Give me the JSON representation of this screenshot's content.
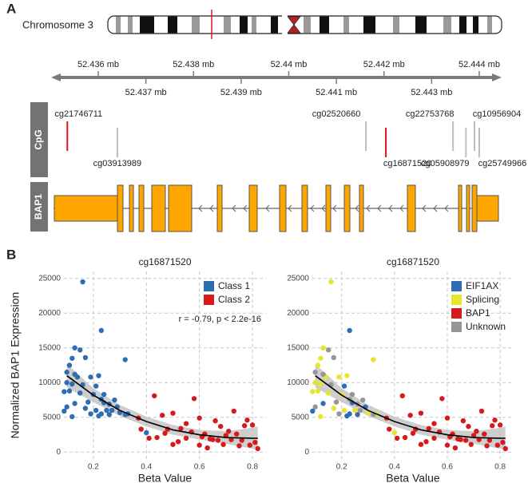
{
  "panel_labels": [
    "A",
    "B"
  ],
  "panel_a": {
    "chromosome_label": "Chromosome 3",
    "axis": {
      "xlim": [
        52.43506,
        52.44442
      ],
      "ticks": [
        {
          "value": 52.436,
          "label": "52.436 mb"
        },
        {
          "value": 52.437,
          "label": "52.437 mb"
        },
        {
          "value": 52.438,
          "label": "52.438 mb"
        },
        {
          "value": 52.439,
          "label": "52.439 mb"
        },
        {
          "value": 52.44,
          "label": "52.44 mb"
        },
        {
          "value": 52.441,
          "label": "52.441 mb"
        },
        {
          "value": 52.442,
          "label": "52.442 mb"
        },
        {
          "value": 52.443,
          "label": "52.443 mb"
        },
        {
          "value": 52.444,
          "label": "52.444 mb"
        }
      ]
    },
    "tracks": [
      "CpG",
      "BAP1"
    ],
    "probes": [
      {
        "name": "cg21746711",
        "position": 52.43535,
        "color": "#d7191c",
        "label_position": "above"
      },
      {
        "name": "cg03913989",
        "position": 52.4364,
        "color": "#bdbdbd",
        "label_position": "below"
      },
      {
        "name": "cg02520660",
        "position": 52.44162,
        "color": "#bdbdbd",
        "label_position": "above"
      },
      {
        "name": "cg16871520",
        "position": 52.44204,
        "color": "#d7191c",
        "label_position": "below"
      },
      {
        "name": "cg22753768",
        "position": 52.44345,
        "color": "#bdbdbd",
        "label_position": "above"
      },
      {
        "name": "cg05908979",
        "position": 52.44372,
        "color": "#bdbdbd",
        "label_position": "below"
      },
      {
        "name": "cg10956904",
        "position": 52.4439,
        "color": "#bdbdbd",
        "label_position": "above"
      },
      {
        "name": "cg25749966",
        "position": 52.444,
        "color": "#bdbdbd",
        "label_position": "below"
      }
    ]
  },
  "chart_data": [
    {
      "type": "scatter",
      "title": "cg16871520",
      "xlabel": "Beta Value",
      "ylabel": "Normalized BAP1 Expression",
      "annotation": "r = -0.79, p < 2.2e-16",
      "legend": "top-right",
      "grid": true,
      "xlim": [
        0.089,
        0.851
      ],
      "ylim": [
        -1000,
        26000
      ],
      "xticks": [
        0.2,
        0.4,
        0.6,
        0.8
      ],
      "yticks": [
        0,
        5000,
        10000,
        15000,
        20000,
        25000
      ],
      "series": [
        {
          "name": "Class 1",
          "color": "#2f6db3",
          "x": [
            0.16,
            0.23,
            0.13,
            0.15,
            0.12,
            0.17,
            0.32,
            0.11,
            0.1,
            0.13,
            0.14,
            0.19,
            0.22,
            0.1,
            0.12,
            0.16,
            0.21,
            0.11,
            0.09,
            0.15,
            0.2,
            0.24,
            0.28,
            0.18,
            0.13,
            0.24,
            0.26,
            0.1,
            0.17,
            0.21,
            0.25,
            0.27,
            0.09,
            0.19,
            0.22,
            0.23,
            0.26,
            0.12,
            0.3,
            0.32,
            0.4,
            0.23,
            0.29,
            0.33
          ],
          "values": [
            24500,
            17500,
            15000,
            14700,
            13500,
            13600,
            13300,
            12500,
            11500,
            11200,
            10800,
            10800,
            11000,
            10000,
            9800,
            9700,
            9500,
            8800,
            8700,
            8500,
            8300,
            8300,
            7500,
            7200,
            7000,
            7100,
            6900,
            6500,
            6300,
            6000,
            6000,
            6000,
            5900,
            5500,
            5200,
            5500,
            5400,
            5100,
            5700,
            5400,
            2800,
            7600,
            6500,
            5500
          ]
        },
        {
          "name": "Class 2",
          "color": "#d7191c",
          "x": [
            0.37,
            0.38,
            0.43,
            0.46,
            0.47,
            0.5,
            0.52,
            0.53,
            0.55,
            0.57,
            0.58,
            0.6,
            0.6,
            0.61,
            0.62,
            0.63,
            0.64,
            0.65,
            0.66,
            0.67,
            0.68,
            0.69,
            0.7,
            0.71,
            0.72,
            0.73,
            0.74,
            0.75,
            0.76,
            0.77,
            0.78,
            0.79,
            0.8,
            0.81,
            0.82,
            0.55,
            0.48,
            0.44,
            0.41,
            0.5
          ],
          "values": [
            4900,
            3300,
            8100,
            5300,
            2700,
            5600,
            1500,
            3400,
            4100,
            2900,
            7700,
            4900,
            1000,
            2200,
            2600,
            600,
            1900,
            1800,
            4500,
            1700,
            3700,
            1100,
            2400,
            3000,
            1800,
            5900,
            2600,
            900,
            1700,
            3800,
            4600,
            1000,
            3900,
            1400,
            500,
            2000,
            3300,
            2100,
            2000,
            1100
          ]
        }
      ],
      "fit": {
        "x": [
          0.1,
          0.2,
          0.3,
          0.4,
          0.5,
          0.6,
          0.7,
          0.8,
          0.82
        ],
        "y": [
          11000,
          8200,
          6000,
          4400,
          3200,
          2500,
          2100,
          2000,
          2000
        ],
        "lower": [
          9300,
          7200,
          5200,
          3700,
          2500,
          1800,
          1200,
          500,
          300
        ],
        "upper": [
          12700,
          9200,
          6800,
          5100,
          3900,
          3200,
          3000,
          3500,
          3700
        ]
      }
    },
    {
      "type": "scatter",
      "title": "cg16871520",
      "xlabel": "Beta Value",
      "legend": "top-right",
      "grid": true,
      "xlim": [
        0.089,
        0.851
      ],
      "ylim": [
        -1000,
        26000
      ],
      "xticks": [
        0.2,
        0.4,
        0.6,
        0.8
      ],
      "yticks": [
        0,
        5000,
        10000,
        15000,
        20000,
        25000
      ],
      "series": [
        {
          "name": "EIF1AX",
          "color": "#2f6db3",
          "x": [
            0.23,
            0.09,
            0.13,
            0.21,
            0.22,
            0.26,
            0.29,
            0.24,
            0.23
          ],
          "values": [
            17500,
            5900,
            7000,
            9500,
            5200,
            5400,
            6500,
            7100,
            5500
          ]
        },
        {
          "name": "Splicing",
          "color": "#e6e62a",
          "x": [
            0.16,
            0.13,
            0.12,
            0.32,
            0.11,
            0.1,
            0.14,
            0.19,
            0.22,
            0.12,
            0.11,
            0.09,
            0.15,
            0.2,
            0.17,
            0.21,
            0.25,
            0.12,
            0.3,
            0.33,
            0.4
          ],
          "values": [
            24500,
            15000,
            13500,
            13300,
            12500,
            10000,
            10800,
            10800,
            11000,
            9800,
            8800,
            8700,
            8500,
            8300,
            6300,
            6000,
            6000,
            5100,
            5700,
            5500,
            2800
          ]
        },
        {
          "name": "BAP1",
          "color": "#d7191c",
          "x": [
            0.37,
            0.38,
            0.43,
            0.46,
            0.47,
            0.5,
            0.52,
            0.53,
            0.55,
            0.57,
            0.58,
            0.6,
            0.6,
            0.61,
            0.62,
            0.63,
            0.64,
            0.65,
            0.66,
            0.67,
            0.68,
            0.69,
            0.7,
            0.71,
            0.72,
            0.73,
            0.74,
            0.75,
            0.76,
            0.77,
            0.78,
            0.79,
            0.8,
            0.81,
            0.82,
            0.55,
            0.48,
            0.44,
            0.41,
            0.5
          ],
          "values": [
            4900,
            3300,
            8100,
            5300,
            2700,
            5600,
            1500,
            3400,
            4100,
            2900,
            7700,
            4900,
            1000,
            2200,
            2600,
            600,
            1900,
            1800,
            4500,
            1700,
            3700,
            1100,
            2400,
            3000,
            1800,
            5900,
            2600,
            900,
            1700,
            3800,
            4600,
            1000,
            3900,
            1400,
            500,
            2000,
            3300,
            2100,
            2000,
            1100
          ]
        },
        {
          "name": "Unknown",
          "color": "#969696",
          "x": [
            0.15,
            0.17,
            0.1,
            0.13,
            0.16,
            0.24,
            0.28,
            0.18,
            0.26,
            0.1,
            0.27,
            0.19,
            0.32,
            0.23
          ],
          "values": [
            14700,
            13600,
            11500,
            11200,
            9700,
            8300,
            7500,
            7200,
            6900,
            6500,
            6000,
            5500,
            5400,
            7600
          ]
        }
      ],
      "fit": {
        "x": [
          0.1,
          0.2,
          0.3,
          0.4,
          0.5,
          0.6,
          0.7,
          0.8,
          0.82
        ],
        "y": [
          11000,
          8200,
          6000,
          4400,
          3200,
          2500,
          2100,
          2000,
          2000
        ],
        "lower": [
          9300,
          7200,
          5200,
          3700,
          2500,
          1800,
          1200,
          500,
          300
        ],
        "upper": [
          12700,
          9200,
          6800,
          5100,
          3900,
          3200,
          3000,
          3500,
          3700
        ]
      }
    }
  ]
}
